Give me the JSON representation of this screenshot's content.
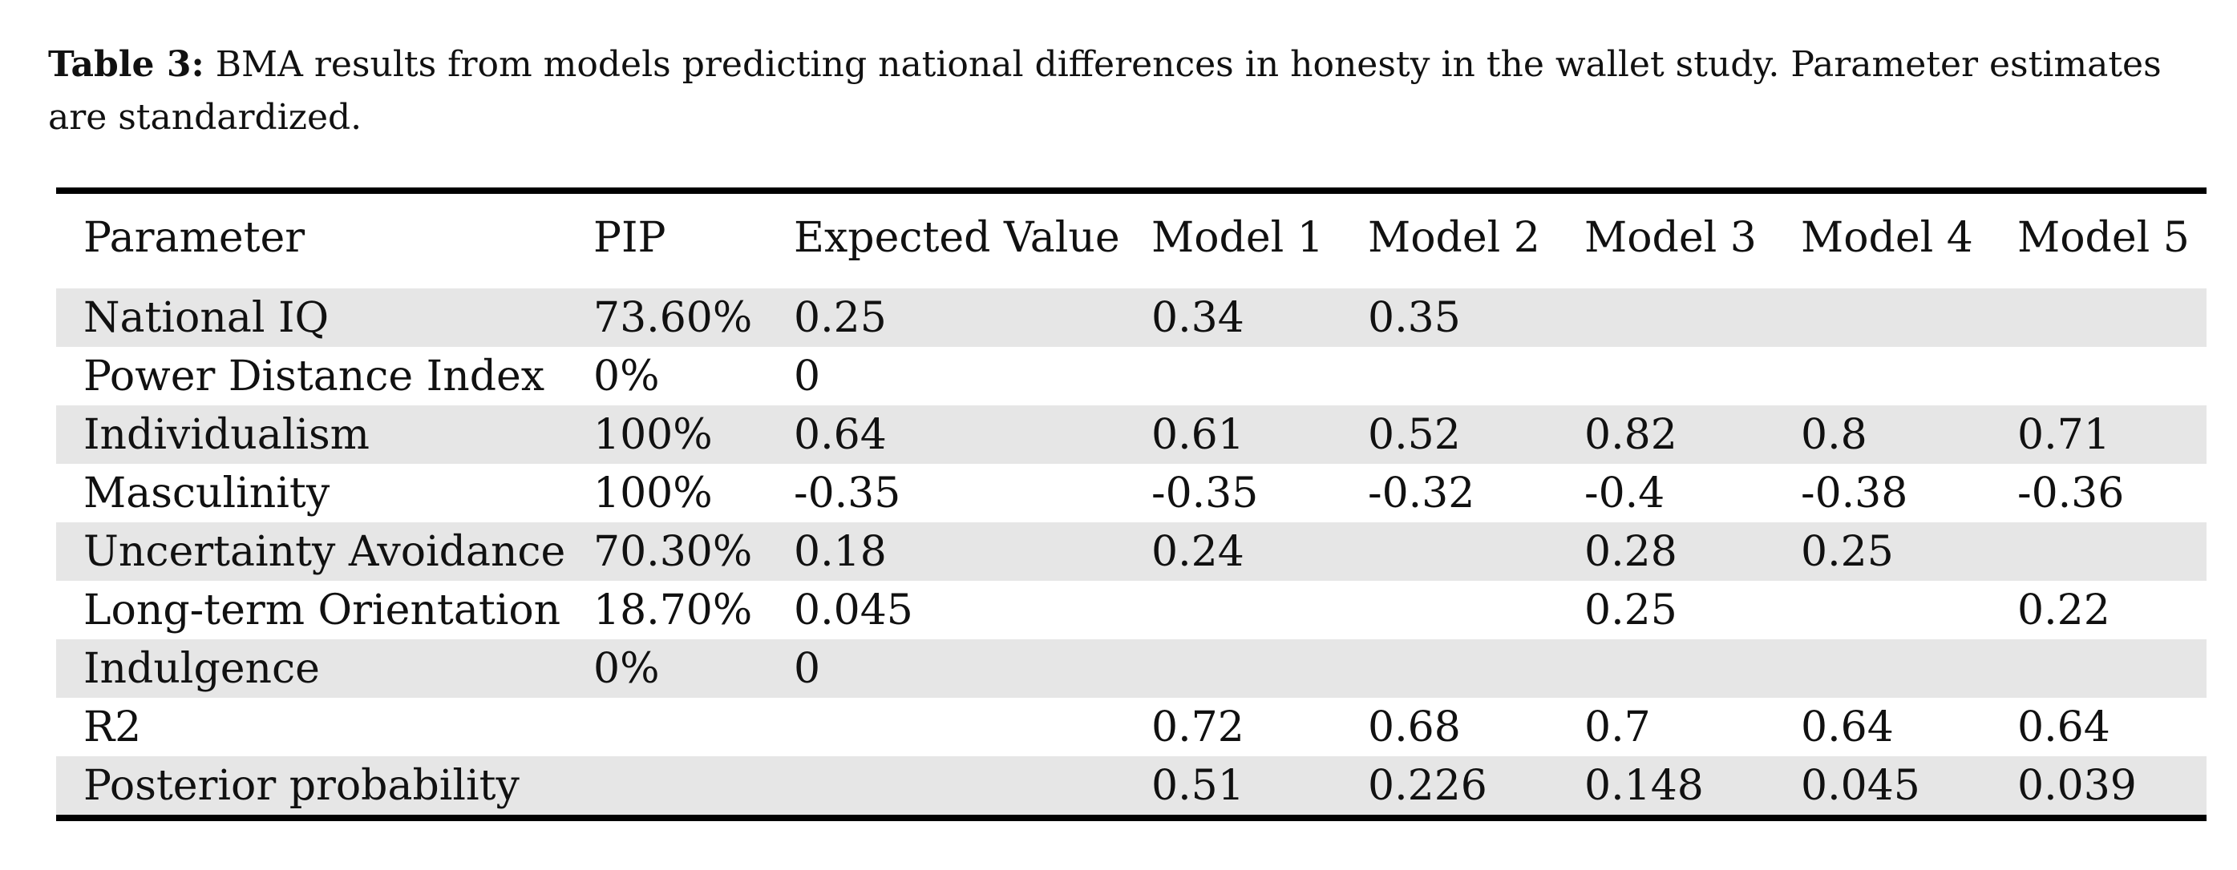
{
  "caption": {
    "label": "Table 3:",
    "text": "BMA results from models predicting national differences in honesty in the wallet study. Parameter estimates are standardized."
  },
  "table": {
    "headers": [
      "Parameter",
      "PIP",
      "Expected Value",
      "Model 1",
      "Model 2",
      "Model 3",
      "Model 4",
      "Model 5"
    ],
    "rows": [
      [
        "National IQ",
        "73.60%",
        "0.25",
        "0.34",
        "0.35",
        "",
        "",
        ""
      ],
      [
        "Power Distance Index",
        "0%",
        "0",
        "",
        "",
        "",
        "",
        ""
      ],
      [
        "Individualism",
        "100%",
        "0.64",
        "0.61",
        "0.52",
        "0.82",
        "0.8",
        "0.71"
      ],
      [
        "Masculinity",
        "100%",
        "-0.35",
        "-0.35",
        "-0.32",
        "-0.4",
        "-0.38",
        "-0.36"
      ],
      [
        "Uncertainty Avoidance",
        "70.30%",
        "0.18",
        "0.24",
        "",
        "0.28",
        "0.25",
        ""
      ],
      [
        "Long-term Orientation",
        "18.70%",
        "0.045",
        "",
        "",
        "0.25",
        "",
        "0.22"
      ],
      [
        "Indulgence",
        "0%",
        "0",
        "",
        "",
        "",
        "",
        ""
      ],
      [
        "R2",
        "",
        "",
        "0.72",
        "0.68",
        "0.7",
        "0.64",
        "0.64"
      ],
      [
        "Posterior probability",
        "",
        "",
        "0.51",
        "0.226",
        "0.148",
        "0.045",
        "0.039"
      ]
    ]
  }
}
